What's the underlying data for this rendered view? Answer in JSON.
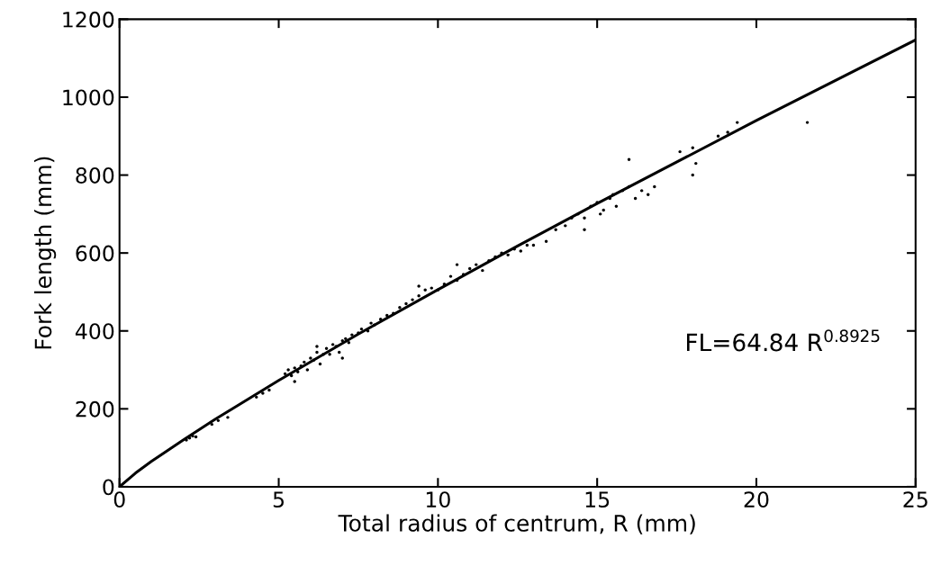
{
  "chart_data": {
    "type": "scatter",
    "xlabel": "Total radius of centrum, R (mm)",
    "ylabel": "Fork length (mm)",
    "xlim": [
      0,
      25
    ],
    "ylim": [
      0,
      1200
    ],
    "xticks": [
      0,
      5,
      10,
      15,
      20,
      25
    ],
    "yticks": [
      0,
      200,
      400,
      600,
      800,
      1000,
      1200
    ],
    "grid": false,
    "legend": false,
    "annotations": [
      "FL=64.84 R$^{0.8925}$"
    ],
    "series": [
      {
        "color": "#000000",
        "marker": "circle",
        "x": [
          2.1,
          2.2,
          2.3,
          2.4,
          2.9,
          3.1,
          3.4,
          4.3,
          4.5,
          4.7,
          5.2,
          5.3,
          5.4,
          5.5,
          5.6,
          5.7,
          5.8,
          5.9,
          6.0,
          6.1,
          6.2,
          6.3,
          6.4,
          6.5,
          6.6,
          6.7,
          6.8,
          6.9,
          7.0,
          7.1,
          7.2,
          7.3,
          7.5,
          7.6,
          7.8,
          7.9,
          8.0,
          8.2,
          8.4,
          8.6,
          8.8,
          9.0,
          9.2,
          9.4,
          9.6,
          9.8,
          10.0,
          10.2,
          10.4,
          10.6,
          10.8,
          11.0,
          11.2,
          11.4,
          11.6,
          11.8,
          12.0,
          12.2,
          12.4,
          12.6,
          12.8,
          13.0,
          13.4,
          13.7,
          14.0,
          14.2,
          14.4,
          14.6,
          14.8,
          15.0,
          15.2,
          15.4,
          15.5,
          15.6,
          15.8,
          16.0,
          16.2,
          16.4,
          16.6,
          16.8,
          16.0,
          17.6,
          18.0,
          18.0,
          18.1,
          18.8,
          19.1,
          19.4,
          21.6,
          5.5,
          6.2,
          7.0,
          9.4,
          10.6,
          14.6,
          15.1
        ],
        "values": [
          120,
          125,
          130,
          128,
          160,
          170,
          178,
          230,
          240,
          248,
          290,
          300,
          285,
          305,
          295,
          310,
          320,
          300,
          330,
          325,
          345,
          315,
          340,
          355,
          340,
          365,
          360,
          345,
          375,
          380,
          370,
          390,
          395,
          405,
          400,
          420,
          415,
          430,
          440,
          445,
          460,
          470,
          480,
          490,
          505,
          510,
          505,
          520,
          540,
          530,
          545,
          560,
          570,
          555,
          580,
          590,
          600,
          595,
          610,
          605,
          620,
          620,
          630,
          660,
          670,
          690,
          700,
          690,
          720,
          730,
          710,
          740,
          750,
          720,
          760,
          770,
          740,
          760,
          750,
          770,
          840,
          860,
          870,
          800,
          830,
          900,
          910,
          935,
          935,
          270,
          360,
          330,
          515,
          570,
          660,
          700
        ]
      },
      {
        "type": "line",
        "color": "#000000",
        "marker": "none",
        "line_style": "solid",
        "x": [
          0,
          0.5,
          1,
          2,
          3,
          5,
          7.5,
          10,
          12.5,
          15,
          20,
          25
        ],
        "values": [
          0,
          35,
          65,
          120,
          173,
          273,
          392,
          506,
          618,
          727,
          940,
          1147
        ]
      }
    ]
  }
}
